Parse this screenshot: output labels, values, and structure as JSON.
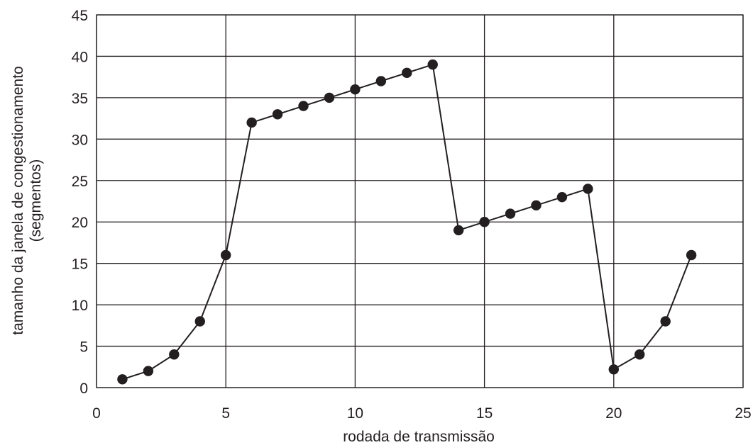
{
  "chart_data": {
    "type": "line",
    "title": "",
    "xlabel": "rodada de transmissão",
    "ylabel_lines": [
      "tamanho da janela de congestionamento",
      "(segmentos)"
    ],
    "xlim": [
      0,
      25
    ],
    "ylim": [
      0,
      45
    ],
    "x_ticks": [
      0,
      5,
      10,
      15,
      20,
      25
    ],
    "y_ticks": [
      0,
      5,
      10,
      15,
      20,
      25,
      30,
      35,
      40,
      45
    ],
    "grid": true,
    "legend": "none",
    "colors": {
      "line": "#231f20",
      "marker": "#231f20",
      "grid": "#231f20",
      "text": "#231f20"
    },
    "series": [
      {
        "x": [
          1,
          2,
          3,
          4,
          5,
          6,
          7,
          8,
          9,
          10,
          11,
          12,
          13,
          14,
          15,
          16,
          17,
          18,
          19,
          20,
          21,
          22,
          23
        ],
        "values": [
          1,
          2,
          4,
          8,
          16,
          32,
          33,
          34,
          35,
          36,
          37,
          38,
          39,
          19,
          20,
          21,
          22,
          23,
          24,
          2.2,
          4,
          8,
          16
        ]
      }
    ]
  }
}
